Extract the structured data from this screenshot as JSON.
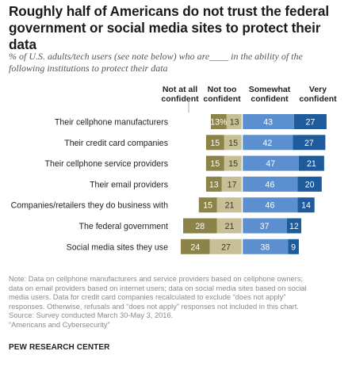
{
  "header": {
    "title_line1": "Roughly half of Americans do not trust the federal",
    "title_line2": "government or social media sites to protect their data",
    "subtitle_line1": "% of U.S. adults/tech users (see note below) who are____ in the ability of the",
    "subtitle_line2": "following institutions to protect their data"
  },
  "columns": {
    "not_at_all_l1": "Not at all",
    "not_at_all_l2": "confident",
    "not_too_l1": "Not too",
    "not_too_l2": "confident",
    "somewhat_l1": "Somewhat",
    "somewhat_l2": "confident",
    "very_l1": "Very",
    "very_l2": "confident"
  },
  "chart_data": {
    "type": "bar",
    "orientation": "horizontal",
    "stacked": "diverging",
    "categories": [
      "Their cellphone manufacturers",
      "Their credit card companies",
      "Their cellphone service providers",
      "Their email providers",
      "Companies/retailers they do business with",
      "The federal government",
      "Social media sites they use"
    ],
    "series": [
      {
        "name": "Not at all confident",
        "values": [
          13,
          15,
          15,
          13,
          15,
          28,
          24
        ],
        "labels": [
          "13%",
          "15",
          "15",
          "13",
          "15",
          "28",
          "24"
        ],
        "color": "#8b8348"
      },
      {
        "name": "Not too confident",
        "values": [
          13,
          15,
          15,
          17,
          21,
          21,
          27
        ],
        "labels": [
          "13",
          "15",
          "15",
          "17",
          "21",
          "21",
          "27"
        ],
        "color": "#c7bf95"
      },
      {
        "name": "Somewhat confident",
        "values": [
          43,
          42,
          47,
          46,
          46,
          37,
          38
        ],
        "labels": [
          "43",
          "42",
          "47",
          "46",
          "46",
          "37",
          "38"
        ],
        "color": "#5b8fcf"
      },
      {
        "name": "Very confident",
        "values": [
          27,
          27,
          21,
          20,
          14,
          12,
          9
        ],
        "labels": [
          "27",
          "27",
          "21",
          "20",
          "14",
          "12",
          "9"
        ],
        "color": "#1d5b9c"
      }
    ],
    "legend": "column headers above bars"
  },
  "notes": {
    "line1": "Note: Data on cellphone manufacturers and service providers based on cellphone owners;",
    "line2": "data on email providers based on internet users; data on social media sites based on social",
    "line3": "media users. Data for credit card companies recalculated to exclude “does not apply”",
    "line4": "responses. Otherwise, refusals and “does not apply” responses not included in this chart.",
    "line5": "Source: Survey conducted March 30-May 3, 2016.",
    "line6": "“Americans and Cybersecurity”"
  },
  "source": "PEW RESEARCH CENTER"
}
